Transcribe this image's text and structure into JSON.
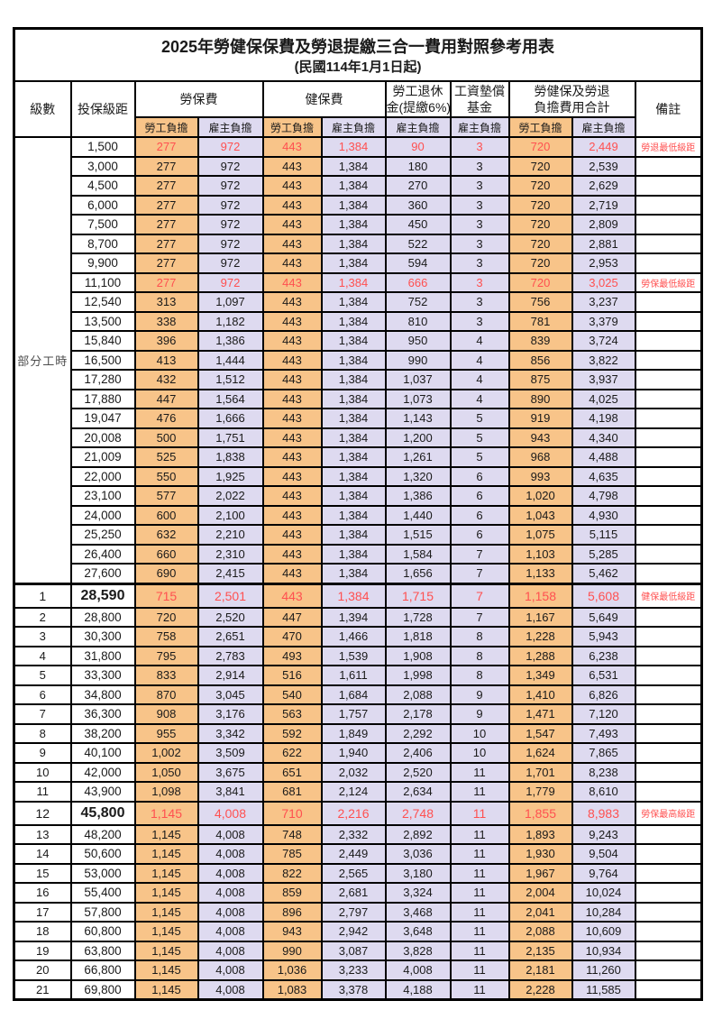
{
  "title": "2025年勞健保保費及勞退提繳三合一費用對照參考用表",
  "subtitle": "(民國114年1月1日起)",
  "colors": {
    "employee_col_bg": "#F8C489",
    "employer_col_bg": "#DEDAF0",
    "highlight_red": "#FF5050",
    "border": "#000000"
  },
  "table": {
    "header": {
      "level": "級數",
      "bracket": "投保級距",
      "labor_insurance": "勞保費",
      "health_insurance": "健保費",
      "pension_line1": "勞工退休",
      "pension_line2": "金(提繳6%)",
      "wage_fund_line1": "工資墊償",
      "wage_fund_line2": "基金",
      "total_line1": "勞健保及勞退",
      "total_line2": "負擔費用合計",
      "remark": "備註",
      "employee_label": "勞工負擔",
      "employer_label": "雇主負擔"
    },
    "part_time_label": "部分工時",
    "part_time_rowspan": 23,
    "rows": [
      {
        "level": "",
        "bracket": "1,500",
        "values": [
          "277",
          "972",
          "443",
          "1,384",
          "90",
          "3",
          "720",
          "2,449"
        ],
        "remark": "勞退最低級距",
        "red": true,
        "big": false
      },
      {
        "level": "",
        "bracket": "3,000",
        "values": [
          "277",
          "972",
          "443",
          "1,384",
          "180",
          "3",
          "720",
          "2,539"
        ],
        "remark": "",
        "red": false,
        "big": false
      },
      {
        "level": "",
        "bracket": "4,500",
        "values": [
          "277",
          "972",
          "443",
          "1,384",
          "270",
          "3",
          "720",
          "2,629"
        ],
        "remark": "",
        "red": false,
        "big": false
      },
      {
        "level": "",
        "bracket": "6,000",
        "values": [
          "277",
          "972",
          "443",
          "1,384",
          "360",
          "3",
          "720",
          "2,719"
        ],
        "remark": "",
        "red": false,
        "big": false
      },
      {
        "level": "",
        "bracket": "7,500",
        "values": [
          "277",
          "972",
          "443",
          "1,384",
          "450",
          "3",
          "720",
          "2,809"
        ],
        "remark": "",
        "red": false,
        "big": false
      },
      {
        "level": "",
        "bracket": "8,700",
        "values": [
          "277",
          "972",
          "443",
          "1,384",
          "522",
          "3",
          "720",
          "2,881"
        ],
        "remark": "",
        "red": false,
        "big": false
      },
      {
        "level": "",
        "bracket": "9,900",
        "values": [
          "277",
          "972",
          "443",
          "1,384",
          "594",
          "3",
          "720",
          "2,953"
        ],
        "remark": "",
        "red": false,
        "big": false
      },
      {
        "level": "",
        "bracket": "11,100",
        "values": [
          "277",
          "972",
          "443",
          "1,384",
          "666",
          "3",
          "720",
          "3,025"
        ],
        "remark": "勞保最低級距",
        "red": true,
        "big": false
      },
      {
        "level": "",
        "bracket": "12,540",
        "values": [
          "313",
          "1,097",
          "443",
          "1,384",
          "752",
          "3",
          "756",
          "3,237"
        ],
        "remark": "",
        "red": false,
        "big": false
      },
      {
        "level": "",
        "bracket": "13,500",
        "values": [
          "338",
          "1,182",
          "443",
          "1,384",
          "810",
          "3",
          "781",
          "3,379"
        ],
        "remark": "",
        "red": false,
        "big": false
      },
      {
        "level": "",
        "bracket": "15,840",
        "values": [
          "396",
          "1,386",
          "443",
          "1,384",
          "950",
          "4",
          "839",
          "3,724"
        ],
        "remark": "",
        "red": false,
        "big": false
      },
      {
        "level": "",
        "bracket": "16,500",
        "values": [
          "413",
          "1,444",
          "443",
          "1,384",
          "990",
          "4",
          "856",
          "3,822"
        ],
        "remark": "",
        "red": false,
        "big": false
      },
      {
        "level": "",
        "bracket": "17,280",
        "values": [
          "432",
          "1,512",
          "443",
          "1,384",
          "1,037",
          "4",
          "875",
          "3,937"
        ],
        "remark": "",
        "red": false,
        "big": false
      },
      {
        "level": "",
        "bracket": "17,880",
        "values": [
          "447",
          "1,564",
          "443",
          "1,384",
          "1,073",
          "4",
          "890",
          "4,025"
        ],
        "remark": "",
        "red": false,
        "big": false
      },
      {
        "level": "",
        "bracket": "19,047",
        "values": [
          "476",
          "1,666",
          "443",
          "1,384",
          "1,143",
          "5",
          "919",
          "4,198"
        ],
        "remark": "",
        "red": false,
        "big": false
      },
      {
        "level": "",
        "bracket": "20,008",
        "values": [
          "500",
          "1,751",
          "443",
          "1,384",
          "1,200",
          "5",
          "943",
          "4,340"
        ],
        "remark": "",
        "red": false,
        "big": false
      },
      {
        "level": "",
        "bracket": "21,009",
        "values": [
          "525",
          "1,838",
          "443",
          "1,384",
          "1,261",
          "5",
          "968",
          "4,488"
        ],
        "remark": "",
        "red": false,
        "big": false
      },
      {
        "level": "",
        "bracket": "22,000",
        "values": [
          "550",
          "1,925",
          "443",
          "1,384",
          "1,320",
          "6",
          "993",
          "4,635"
        ],
        "remark": "",
        "red": false,
        "big": false
      },
      {
        "level": "",
        "bracket": "23,100",
        "values": [
          "577",
          "2,022",
          "443",
          "1,384",
          "1,386",
          "6",
          "1,020",
          "4,798"
        ],
        "remark": "",
        "red": false,
        "big": false
      },
      {
        "level": "",
        "bracket": "24,000",
        "values": [
          "600",
          "2,100",
          "443",
          "1,384",
          "1,440",
          "6",
          "1,043",
          "4,930"
        ],
        "remark": "",
        "red": false,
        "big": false
      },
      {
        "level": "",
        "bracket": "25,250",
        "values": [
          "632",
          "2,210",
          "443",
          "1,384",
          "1,515",
          "6",
          "1,075",
          "5,115"
        ],
        "remark": "",
        "red": false,
        "big": false
      },
      {
        "level": "",
        "bracket": "26,400",
        "values": [
          "660",
          "2,310",
          "443",
          "1,384",
          "1,584",
          "7",
          "1,103",
          "5,285"
        ],
        "remark": "",
        "red": false,
        "big": false
      },
      {
        "level": "",
        "bracket": "27,600",
        "values": [
          "690",
          "2,415",
          "443",
          "1,384",
          "1,656",
          "7",
          "1,133",
          "5,462"
        ],
        "remark": "",
        "red": false,
        "big": false
      },
      {
        "level": "1",
        "bracket": "28,590",
        "values": [
          "715",
          "2,501",
          "443",
          "1,384",
          "1,715",
          "7",
          "1,158",
          "5,608"
        ],
        "remark": "健保最低級距",
        "red": true,
        "big": true,
        "thickTop": true
      },
      {
        "level": "2",
        "bracket": "28,800",
        "values": [
          "720",
          "2,520",
          "447",
          "1,394",
          "1,728",
          "7",
          "1,167",
          "5,649"
        ],
        "remark": "",
        "red": false,
        "big": false
      },
      {
        "level": "3",
        "bracket": "30,300",
        "values": [
          "758",
          "2,651",
          "470",
          "1,466",
          "1,818",
          "8",
          "1,228",
          "5,943"
        ],
        "remark": "",
        "red": false,
        "big": false
      },
      {
        "level": "4",
        "bracket": "31,800",
        "values": [
          "795",
          "2,783",
          "493",
          "1,539",
          "1,908",
          "8",
          "1,288",
          "6,238"
        ],
        "remark": "",
        "red": false,
        "big": false
      },
      {
        "level": "5",
        "bracket": "33,300",
        "values": [
          "833",
          "2,914",
          "516",
          "1,611",
          "1,998",
          "8",
          "1,349",
          "6,531"
        ],
        "remark": "",
        "red": false,
        "big": false
      },
      {
        "level": "6",
        "bracket": "34,800",
        "values": [
          "870",
          "3,045",
          "540",
          "1,684",
          "2,088",
          "9",
          "1,410",
          "6,826"
        ],
        "remark": "",
        "red": false,
        "big": false
      },
      {
        "level": "7",
        "bracket": "36,300",
        "values": [
          "908",
          "3,176",
          "563",
          "1,757",
          "2,178",
          "9",
          "1,471",
          "7,120"
        ],
        "remark": "",
        "red": false,
        "big": false
      },
      {
        "level": "8",
        "bracket": "38,200",
        "values": [
          "955",
          "3,342",
          "592",
          "1,849",
          "2,292",
          "10",
          "1,547",
          "7,493"
        ],
        "remark": "",
        "red": false,
        "big": false
      },
      {
        "level": "9",
        "bracket": "40,100",
        "values": [
          "1,002",
          "3,509",
          "622",
          "1,940",
          "2,406",
          "10",
          "1,624",
          "7,865"
        ],
        "remark": "",
        "red": false,
        "big": false
      },
      {
        "level": "10",
        "bracket": "42,000",
        "values": [
          "1,050",
          "3,675",
          "651",
          "2,032",
          "2,520",
          "11",
          "1,701",
          "8,238"
        ],
        "remark": "",
        "red": false,
        "big": false
      },
      {
        "level": "11",
        "bracket": "43,900",
        "values": [
          "1,098",
          "3,841",
          "681",
          "2,124",
          "2,634",
          "11",
          "1,779",
          "8,610"
        ],
        "remark": "",
        "red": false,
        "big": false
      },
      {
        "level": "12",
        "bracket": "45,800",
        "values": [
          "1,145",
          "4,008",
          "710",
          "2,216",
          "2,748",
          "11",
          "1,855",
          "8,983"
        ],
        "remark": "勞保最高級距",
        "red": true,
        "big": true
      },
      {
        "level": "13",
        "bracket": "48,200",
        "values": [
          "1,145",
          "4,008",
          "748",
          "2,332",
          "2,892",
          "11",
          "1,893",
          "9,243"
        ],
        "remark": "",
        "red": false,
        "big": false
      },
      {
        "level": "14",
        "bracket": "50,600",
        "values": [
          "1,145",
          "4,008",
          "785",
          "2,449",
          "3,036",
          "11",
          "1,930",
          "9,504"
        ],
        "remark": "",
        "red": false,
        "big": false
      },
      {
        "level": "15",
        "bracket": "53,000",
        "values": [
          "1,145",
          "4,008",
          "822",
          "2,565",
          "3,180",
          "11",
          "1,967",
          "9,764"
        ],
        "remark": "",
        "red": false,
        "big": false
      },
      {
        "level": "16",
        "bracket": "55,400",
        "values": [
          "1,145",
          "4,008",
          "859",
          "2,681",
          "3,324",
          "11",
          "2,004",
          "10,024"
        ],
        "remark": "",
        "red": false,
        "big": false
      },
      {
        "level": "17",
        "bracket": "57,800",
        "values": [
          "1,145",
          "4,008",
          "896",
          "2,797",
          "3,468",
          "11",
          "2,041",
          "10,284"
        ],
        "remark": "",
        "red": false,
        "big": false
      },
      {
        "level": "18",
        "bracket": "60,800",
        "values": [
          "1,145",
          "4,008",
          "943",
          "2,942",
          "3,648",
          "11",
          "2,088",
          "10,609"
        ],
        "remark": "",
        "red": false,
        "big": false
      },
      {
        "level": "19",
        "bracket": "63,800",
        "values": [
          "1,145",
          "4,008",
          "990",
          "3,087",
          "3,828",
          "11",
          "2,135",
          "10,934"
        ],
        "remark": "",
        "red": false,
        "big": false
      },
      {
        "level": "20",
        "bracket": "66,800",
        "values": [
          "1,145",
          "4,008",
          "1,036",
          "3,233",
          "4,008",
          "11",
          "2,181",
          "11,260"
        ],
        "remark": "",
        "red": false,
        "big": false
      },
      {
        "level": "21",
        "bracket": "69,800",
        "values": [
          "1,145",
          "4,008",
          "1,083",
          "3,378",
          "4,188",
          "11",
          "2,228",
          "11,585"
        ],
        "remark": "",
        "red": false,
        "big": false
      }
    ]
  }
}
